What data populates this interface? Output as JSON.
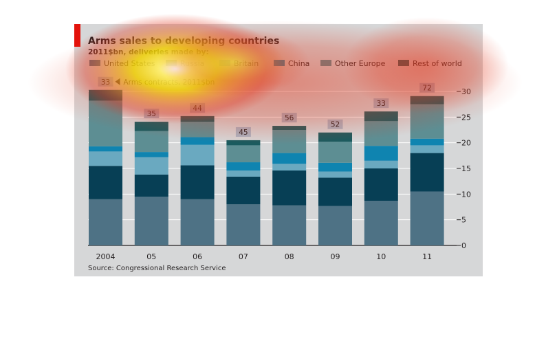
{
  "chart_data": {
    "type": "bar",
    "stacked": true,
    "title": "Arms sales to developing countries",
    "subtitle": "2011$bn, deliveries made by:",
    "categories": [
      "2004",
      "05",
      "06",
      "07",
      "08",
      "09",
      "10",
      "11"
    ],
    "ylim": [
      0,
      30
    ],
    "yticks": [
      0,
      5,
      10,
      15,
      20,
      25,
      30
    ],
    "y_axis_side": "right",
    "grid": true,
    "legend_position": "top",
    "series": [
      {
        "name": "United States",
        "color": "#4e7285",
        "values": [
          9.0,
          9.5,
          9.0,
          8.0,
          7.8,
          7.7,
          8.7,
          10.5
        ]
      },
      {
        "name": "Russia",
        "color": "#073f55",
        "values": [
          6.5,
          4.3,
          6.6,
          5.4,
          6.8,
          5.5,
          6.3,
          7.5
        ]
      },
      {
        "name": "Britain",
        "color": "#6aa9c0",
        "values": [
          2.8,
          3.4,
          4.0,
          1.2,
          1.3,
          1.2,
          1.5,
          1.5
        ]
      },
      {
        "name": "China",
        "color": "#0f84b0",
        "values": [
          1.0,
          1.0,
          1.5,
          1.6,
          2.1,
          1.7,
          2.9,
          1.3
        ]
      },
      {
        "name": "Other Europe",
        "color": "#5d8e93",
        "values": [
          8.9,
          4.1,
          3.0,
          3.3,
          4.5,
          4.1,
          4.8,
          6.7
        ]
      },
      {
        "name": "Rest of world",
        "color": "#1a5b5f",
        "values": [
          2.1,
          1.8,
          1.1,
          1.0,
          0.8,
          1.8,
          1.9,
          1.6
        ]
      }
    ],
    "arms_contracts": {
      "label": "Arms contracts, 2011$bn",
      "values": [
        "33",
        "35",
        "44",
        "45",
        "56",
        "52",
        "33",
        "72"
      ]
    },
    "source": "Source: Congressional Research Service"
  },
  "legend_rows": [
    [
      "United States",
      "Russia",
      "Britain",
      "China",
      "Other Europe",
      "Rest of world"
    ]
  ]
}
